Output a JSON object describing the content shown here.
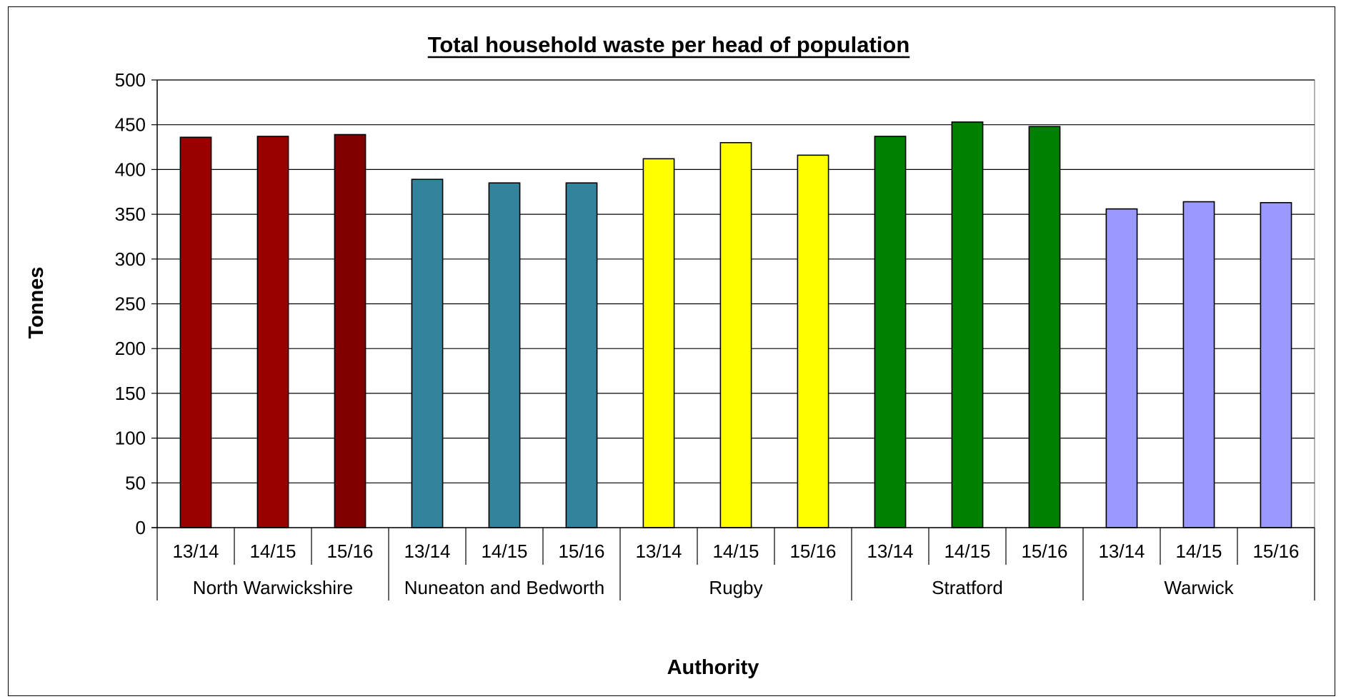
{
  "chart_data": {
    "type": "bar",
    "title": "Total household waste per head of population",
    "xlabel": "Authority",
    "ylabel": "Tonnes",
    "ylim": [
      0,
      500
    ],
    "yticks": [
      0,
      50,
      100,
      150,
      200,
      250,
      300,
      350,
      400,
      450,
      500
    ],
    "grid": true,
    "legend": "none",
    "groups": [
      {
        "name": "North Warwickshire",
        "categories": [
          "13/14",
          "14/15",
          "15/16"
        ],
        "values": [
          436,
          437,
          439
        ],
        "colors": [
          "#990000",
          "#990000",
          "#800000"
        ]
      },
      {
        "name": "Nuneaton and Bedworth",
        "categories": [
          "13/14",
          "14/15",
          "15/16"
        ],
        "values": [
          389,
          385,
          385
        ],
        "colors": [
          "#31849B",
          "#31849B",
          "#31849B"
        ]
      },
      {
        "name": "Rugby",
        "categories": [
          "13/14",
          "14/15",
          "15/16"
        ],
        "values": [
          412,
          430,
          416
        ],
        "colors": [
          "#FFFF00",
          "#FFFF00",
          "#FFFF00"
        ]
      },
      {
        "name": "Stratford",
        "categories": [
          "13/14",
          "14/15",
          "15/16"
        ],
        "values": [
          437,
          453,
          448
        ],
        "colors": [
          "#008000",
          "#008000",
          "#008000"
        ]
      },
      {
        "name": "Warwick",
        "categories": [
          "13/14",
          "14/15",
          "15/16"
        ],
        "values": [
          356,
          364,
          363
        ],
        "colors": [
          "#9999FF",
          "#9999FF",
          "#9999FF"
        ]
      }
    ]
  }
}
